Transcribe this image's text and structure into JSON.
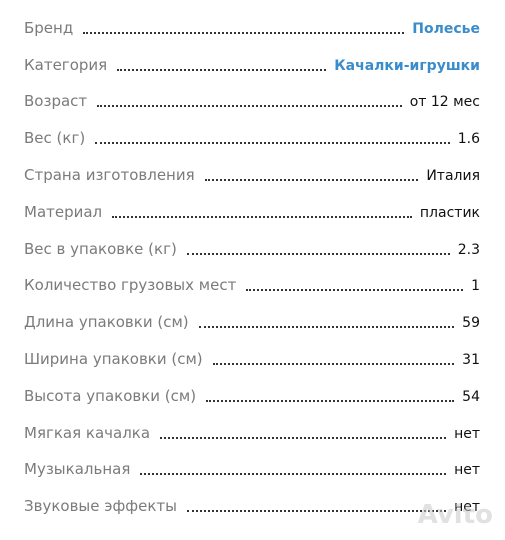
{
  "specs": {
    "rows": [
      {
        "label": "Бренд",
        "value": "Полесье"
      },
      {
        "label": "Категория",
        "value": "Качалки-игрушки"
      },
      {
        "label": "Возраст",
        "value": "от 12 мес"
      },
      {
        "label": "Вес (кг)",
        "value": "1.6"
      },
      {
        "label": "Страна изготовления",
        "value": "Италия"
      },
      {
        "label": "Материал",
        "value": "пластик"
      },
      {
        "label": "Вес в упаковке (кг)",
        "value": "2.3"
      },
      {
        "label": "Количество грузовых мест",
        "value": "1"
      },
      {
        "label": "Длина упаковки (см)",
        "value": "59"
      },
      {
        "label": "Ширина упаковки (см)",
        "value": "31"
      },
      {
        "label": "Высота упаковки (см)",
        "value": "54"
      },
      {
        "label": "Мягкая качалка",
        "value": "нет"
      },
      {
        "label": "Музыкальная",
        "value": "нет"
      },
      {
        "label": "Звуковые эффекты",
        "value": "нет"
      }
    ]
  },
  "watermark": "Avito"
}
